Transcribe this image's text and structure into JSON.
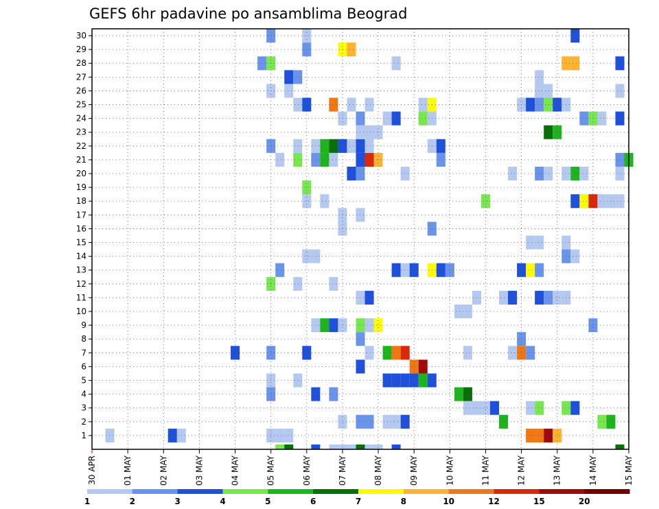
{
  "chart_data": {
    "type": "heatmap",
    "title": "GEFS 6hr padavine po ansamblima Beograd",
    "xlabel": "",
    "ylabel": "",
    "x_tick_labels": [
      "30 APR",
      "01 MAY",
      "02 MAY",
      "03 MAY",
      "04 MAY",
      "05 MAY",
      "06 MAY",
      "07 MAY",
      "08 MAY",
      "09 MAY",
      "10 MAY",
      "11 MAY",
      "12 MAY",
      "13 MAY",
      "14 MAY",
      "15 MAY"
    ],
    "y_tick_labels": [
      "1",
      "2",
      "3",
      "4",
      "5",
      "6",
      "7",
      "8",
      "9",
      "10",
      "11",
      "12",
      "13",
      "14",
      "15",
      "16",
      "17",
      "18",
      "19",
      "20",
      "21",
      "22",
      "23",
      "24",
      "25",
      "26",
      "27",
      "28",
      "29",
      "30"
    ],
    "xlim_steps": [
      0,
      60
    ],
    "steps_per_day": 4,
    "ylim": [
      0,
      30
    ],
    "grid": true,
    "colorbar": {
      "position": "bottom",
      "tick_labels": [
        "1",
        "2",
        "3",
        "4",
        "5",
        "6",
        "7",
        "8",
        "10",
        "12",
        "15",
        "20"
      ],
      "colors": [
        "#b4c8f0",
        "#6a94ea",
        "#1e50dc",
        "#78e650",
        "#1eb41e",
        "#0a6e0a",
        "#fafa0a",
        "#fab432",
        "#f07814",
        "#dc280a",
        "#a00a0a",
        "#6e0000"
      ]
    },
    "cells": [
      [
        2,
        1,
        1
      ],
      [
        9,
        1,
        3
      ],
      [
        10,
        1,
        1
      ],
      [
        20,
        1,
        1
      ],
      [
        21,
        1,
        1
      ],
      [
        22,
        1,
        1
      ],
      [
        49,
        1,
        9
      ],
      [
        50,
        1,
        9
      ],
      [
        51,
        1,
        11
      ],
      [
        52,
        1,
        8
      ],
      [
        28,
        2,
        1
      ],
      [
        30,
        2,
        2
      ],
      [
        31,
        2,
        2
      ],
      [
        33,
        2,
        1
      ],
      [
        34,
        2,
        1
      ],
      [
        35,
        2,
        3
      ],
      [
        46,
        2,
        5
      ],
      [
        57,
        2,
        4
      ],
      [
        58,
        2,
        5
      ],
      [
        42,
        3,
        1
      ],
      [
        43,
        3,
        1
      ],
      [
        44,
        3,
        1
      ],
      [
        45,
        3,
        3
      ],
      [
        49,
        3,
        1
      ],
      [
        50,
        3,
        4
      ],
      [
        53,
        3,
        4
      ],
      [
        54,
        3,
        3
      ],
      [
        20,
        4,
        2
      ],
      [
        25,
        4,
        3
      ],
      [
        27,
        4,
        2
      ],
      [
        41,
        4,
        5
      ],
      [
        42,
        4,
        6
      ],
      [
        20,
        5,
        1
      ],
      [
        23,
        5,
        1
      ],
      [
        33,
        5,
        3
      ],
      [
        34,
        5,
        3
      ],
      [
        35,
        5,
        3
      ],
      [
        36,
        5,
        3
      ],
      [
        37,
        5,
        5
      ],
      [
        38,
        5,
        3
      ],
      [
        30,
        6,
        3
      ],
      [
        36,
        6,
        9
      ],
      [
        37,
        6,
        11
      ],
      [
        16,
        7,
        3
      ],
      [
        20,
        7,
        2
      ],
      [
        24,
        7,
        3
      ],
      [
        31,
        7,
        1
      ],
      [
        33,
        7,
        5
      ],
      [
        34,
        7,
        9
      ],
      [
        35,
        7,
        10
      ],
      [
        42,
        7,
        1
      ],
      [
        47,
        7,
        1
      ],
      [
        48,
        7,
        9
      ],
      [
        49,
        7,
        2
      ],
      [
        30,
        8,
        2
      ],
      [
        48,
        8,
        2
      ],
      [
        25,
        9,
        1
      ],
      [
        26,
        9,
        5
      ],
      [
        27,
        9,
        3
      ],
      [
        28,
        9,
        1
      ],
      [
        30,
        9,
        4
      ],
      [
        31,
        9,
        1
      ],
      [
        32,
        9,
        7
      ],
      [
        56,
        9,
        2
      ],
      [
        41,
        10,
        1
      ],
      [
        42,
        10,
        1
      ],
      [
        30,
        11,
        1
      ],
      [
        31,
        11,
        3
      ],
      [
        43,
        11,
        1
      ],
      [
        46,
        11,
        1
      ],
      [
        47,
        11,
        3
      ],
      [
        50,
        11,
        3
      ],
      [
        51,
        11,
        2
      ],
      [
        52,
        11,
        1
      ],
      [
        53,
        11,
        1
      ],
      [
        20,
        12,
        4
      ],
      [
        23,
        12,
        1
      ],
      [
        27,
        12,
        1
      ],
      [
        21,
        13,
        2
      ],
      [
        34,
        13,
        3
      ],
      [
        35,
        13,
        1
      ],
      [
        36,
        13,
        3
      ],
      [
        38,
        13,
        7
      ],
      [
        39,
        13,
        3
      ],
      [
        40,
        13,
        2
      ],
      [
        48,
        13,
        3
      ],
      [
        49,
        13,
        7
      ],
      [
        50,
        13,
        2
      ],
      [
        24,
        14,
        1
      ],
      [
        25,
        14,
        1
      ],
      [
        53,
        14,
        2
      ],
      [
        54,
        14,
        1
      ],
      [
        49,
        15,
        1
      ],
      [
        50,
        15,
        1
      ],
      [
        53,
        15,
        1
      ],
      [
        28,
        16,
        1
      ],
      [
        38,
        16,
        2
      ],
      [
        28,
        17,
        1
      ],
      [
        30,
        17,
        1
      ],
      [
        24,
        18,
        1
      ],
      [
        26,
        18,
        1
      ],
      [
        44,
        18,
        4
      ],
      [
        54,
        18,
        3
      ],
      [
        55,
        18,
        7
      ],
      [
        56,
        18,
        10
      ],
      [
        57,
        18,
        1
      ],
      [
        58,
        18,
        1
      ],
      [
        59,
        18,
        1
      ],
      [
        24,
        19,
        4
      ],
      [
        29,
        20,
        3
      ],
      [
        30,
        20,
        2
      ],
      [
        35,
        20,
        1
      ],
      [
        47,
        20,
        1
      ],
      [
        50,
        20,
        2
      ],
      [
        51,
        20,
        1
      ],
      [
        53,
        20,
        1
      ],
      [
        54,
        20,
        5
      ],
      [
        55,
        20,
        1
      ],
      [
        59,
        20,
        1
      ],
      [
        21,
        21,
        1
      ],
      [
        23,
        21,
        4
      ],
      [
        25,
        21,
        2
      ],
      [
        26,
        21,
        5
      ],
      [
        27,
        21,
        1
      ],
      [
        30,
        21,
        3
      ],
      [
        31,
        21,
        10
      ],
      [
        32,
        21,
        8
      ],
      [
        39,
        21,
        2
      ],
      [
        59,
        21,
        2
      ],
      [
        60,
        21,
        5
      ],
      [
        20,
        22,
        2
      ],
      [
        23,
        22,
        1
      ],
      [
        25,
        22,
        1
      ],
      [
        26,
        22,
        5
      ],
      [
        27,
        22,
        6
      ],
      [
        28,
        22,
        3
      ],
      [
        29,
        22,
        1
      ],
      [
        30,
        22,
        3
      ],
      [
        31,
        22,
        1
      ],
      [
        38,
        22,
        1
      ],
      [
        39,
        22,
        3
      ],
      [
        30,
        23,
        1
      ],
      [
        31,
        23,
        1
      ],
      [
        32,
        23,
        1
      ],
      [
        51,
        23,
        6
      ],
      [
        52,
        23,
        5
      ],
      [
        28,
        24,
        1
      ],
      [
        30,
        24,
        2
      ],
      [
        33,
        24,
        1
      ],
      [
        34,
        24,
        3
      ],
      [
        37,
        24,
        4
      ],
      [
        38,
        24,
        1
      ],
      [
        55,
        24,
        2
      ],
      [
        56,
        24,
        4
      ],
      [
        57,
        24,
        1
      ],
      [
        59,
        24,
        3
      ],
      [
        23,
        25,
        1
      ],
      [
        24,
        25,
        3
      ],
      [
        27,
        25,
        9
      ],
      [
        29,
        25,
        1
      ],
      [
        31,
        25,
        1
      ],
      [
        37,
        25,
        1
      ],
      [
        38,
        25,
        7
      ],
      [
        48,
        25,
        1
      ],
      [
        49,
        25,
        3
      ],
      [
        50,
        25,
        2
      ],
      [
        51,
        25,
        4
      ],
      [
        52,
        25,
        3
      ],
      [
        53,
        25,
        1
      ],
      [
        20,
        26,
        1
      ],
      [
        22,
        26,
        1
      ],
      [
        50,
        26,
        1
      ],
      [
        51,
        26,
        1
      ],
      [
        59,
        26,
        1
      ],
      [
        22,
        27,
        3
      ],
      [
        23,
        27,
        2
      ],
      [
        50,
        27,
        1
      ],
      [
        19,
        28,
        2
      ],
      [
        20,
        28,
        4
      ],
      [
        34,
        28,
        1
      ],
      [
        53,
        28,
        8
      ],
      [
        54,
        28,
        8
      ],
      [
        59,
        28,
        3
      ],
      [
        28,
        29,
        7
      ],
      [
        29,
        29,
        8
      ],
      [
        24,
        29,
        2
      ],
      [
        20,
        30,
        2
      ],
      [
        24,
        30,
        1
      ],
      [
        54,
        30,
        3
      ]
    ],
    "bottom_strip": [
      [
        21,
        4
      ],
      [
        22,
        6
      ],
      [
        25,
        3
      ],
      [
        27,
        1
      ],
      [
        28,
        1
      ],
      [
        29,
        1
      ],
      [
        30,
        6
      ],
      [
        31,
        1
      ],
      [
        32,
        1
      ],
      [
        34,
        3
      ],
      [
        59,
        6
      ]
    ]
  }
}
